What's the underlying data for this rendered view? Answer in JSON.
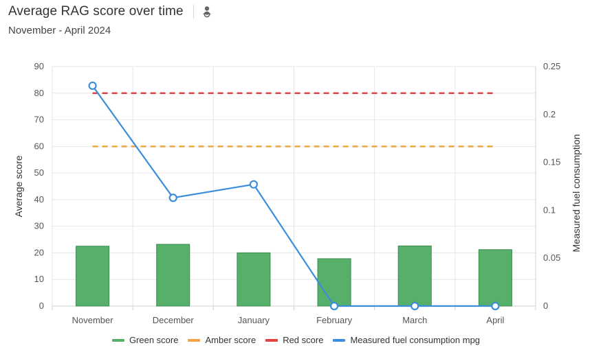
{
  "header": {
    "title": "Average RAG score over time",
    "subtitle": "November - April 2024",
    "icon": "driver-icon"
  },
  "colors": {
    "green": "#57b06a",
    "green_border": "#3d8a4f",
    "amber": "#f0a742",
    "red": "#e04444",
    "blue": "#3a8ddb"
  },
  "chart_data": {
    "type": "bar",
    "categories": [
      "November",
      "December",
      "January",
      "February",
      "March",
      "April"
    ],
    "y_left": {
      "label": "Average score",
      "lim": [
        0,
        90
      ],
      "ticks": [
        0,
        10,
        20,
        30,
        40,
        50,
        60,
        70,
        80,
        90
      ]
    },
    "y_right": {
      "label": "Measured fuel consumption",
      "lim": [
        0,
        0.25
      ],
      "ticks": [
        "0",
        "0.05",
        "0.1",
        "0.15",
        "0.2",
        "0.25"
      ]
    },
    "series": [
      {
        "name": "Green score",
        "kind": "bar",
        "axis": "left",
        "values": [
          22.5,
          23.2,
          20.0,
          17.8,
          22.6,
          21.2
        ]
      },
      {
        "name": "Amber score",
        "kind": "dashed-line",
        "axis": "left",
        "values": [
          60,
          60,
          60,
          60,
          60,
          60
        ]
      },
      {
        "name": "Red score",
        "kind": "dashed-line",
        "axis": "left",
        "values": [
          80,
          80,
          80,
          80,
          80,
          80
        ]
      },
      {
        "name": "Measured fuel consumption mpg",
        "kind": "line",
        "axis": "right",
        "values": [
          0.23,
          0.113,
          0.127,
          0,
          0,
          0
        ]
      }
    ],
    "grid": true,
    "legend_position": "bottom-center"
  }
}
